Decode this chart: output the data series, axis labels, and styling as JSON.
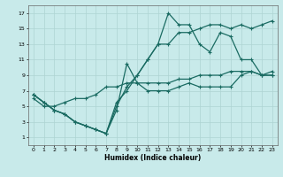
{
  "xlabel": "Humidex (Indice chaleur)",
  "bg_color": "#c8eaea",
  "grid_color": "#aed4d2",
  "line_color": "#1a6b62",
  "xlim": [
    -0.5,
    23.5
  ],
  "ylim": [
    0,
    18
  ],
  "xticks": [
    0,
    1,
    2,
    3,
    4,
    5,
    6,
    7,
    8,
    9,
    10,
    11,
    12,
    13,
    14,
    15,
    16,
    17,
    18,
    19,
    20,
    21,
    22,
    23
  ],
  "yticks": [
    1,
    3,
    5,
    7,
    9,
    11,
    13,
    15,
    17
  ],
  "lineA_x": [
    0,
    1,
    2,
    3,
    4,
    5,
    6,
    7,
    8,
    9,
    10,
    11,
    12,
    13,
    14,
    15,
    16,
    17,
    18,
    19,
    20,
    21,
    22,
    23
  ],
  "lineA_y": [
    6.5,
    5.5,
    4.5,
    4,
    3,
    2.5,
    2,
    1.5,
    4.5,
    10.5,
    8,
    7,
    7,
    7,
    7.5,
    8,
    7.5,
    7.5,
    7.5,
    7.5,
    9,
    9.5,
    9,
    9
  ],
  "lineB_x": [
    0,
    1,
    2,
    3,
    4,
    5,
    6,
    7,
    8,
    9,
    10,
    11,
    12,
    13,
    14,
    15,
    16,
    17,
    18,
    19,
    20,
    21,
    22,
    23
  ],
  "lineB_y": [
    6.5,
    5.5,
    4.5,
    4,
    3,
    2.5,
    2,
    1.5,
    5.5,
    7,
    9,
    11,
    13,
    13,
    14.5,
    14.5,
    15,
    15.5,
    15.5,
    15,
    15.5,
    15,
    15.5,
    16
  ],
  "lineC_x": [
    0,
    1,
    2,
    3,
    4,
    5,
    6,
    7,
    8,
    9,
    10,
    11,
    12,
    13,
    14,
    15,
    16,
    17,
    18,
    19,
    20,
    21,
    22,
    23
  ],
  "lineC_y": [
    6.5,
    5.5,
    4.5,
    4,
    3,
    2.5,
    2,
    1.5,
    5,
    7.5,
    9,
    11,
    13,
    17,
    15.5,
    15.5,
    13,
    12,
    14.5,
    14,
    11,
    11,
    9,
    9.5
  ],
  "lineD_x": [
    0,
    1,
    2,
    3,
    4,
    5,
    6,
    7,
    8,
    9,
    10,
    11,
    12,
    13,
    14,
    15,
    16,
    17,
    18,
    19,
    20,
    21,
    22,
    23
  ],
  "lineD_y": [
    6,
    5,
    5,
    5.5,
    6,
    6,
    6.5,
    7.5,
    7.5,
    8,
    8,
    8,
    8,
    8,
    8.5,
    8.5,
    9,
    9,
    9,
    9.5,
    9.5,
    9.5,
    9,
    9
  ]
}
